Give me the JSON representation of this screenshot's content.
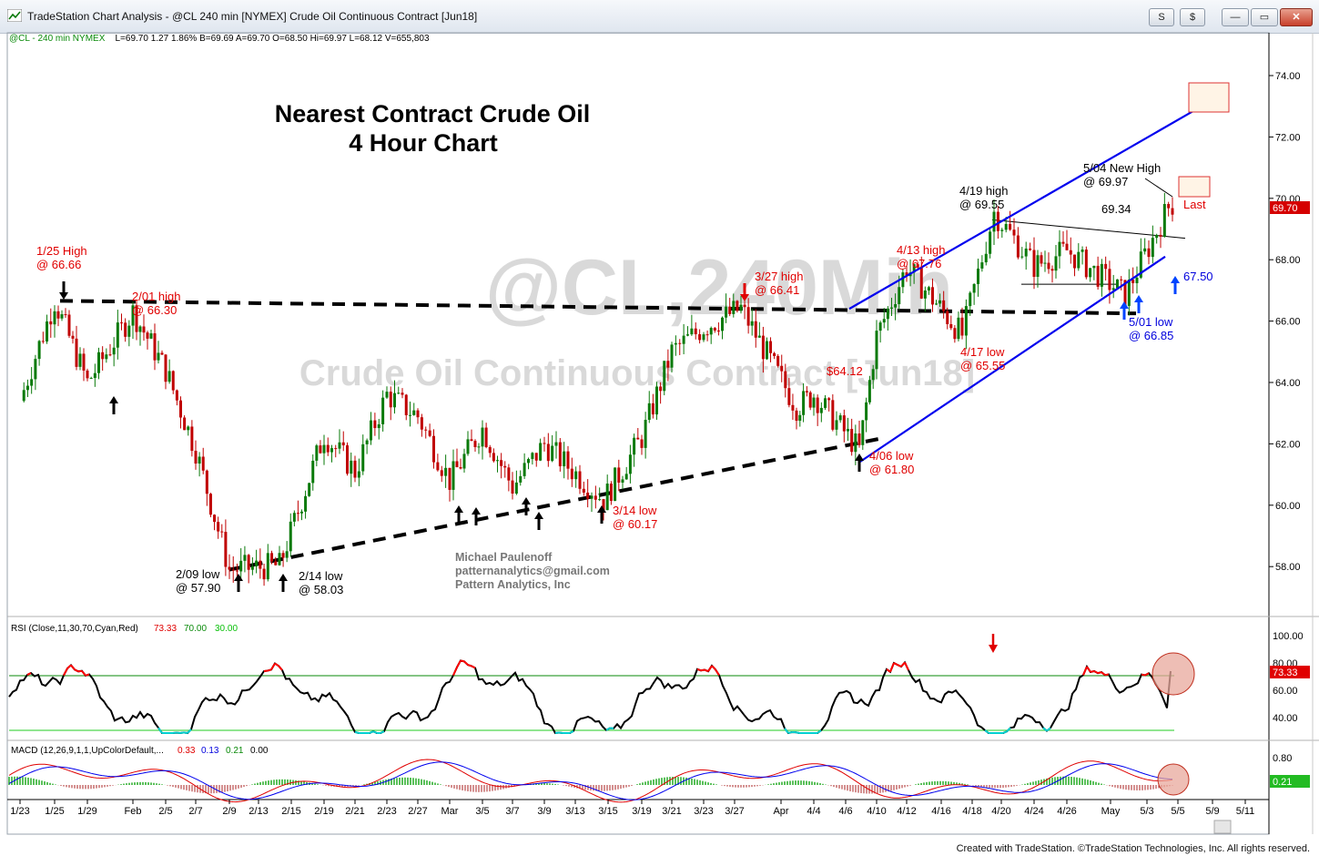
{
  "window": {
    "title": "TradeStation Chart Analysis - @CL 240 min [NYMEX] Crude Oil Continuous Contract [Jun18]",
    "buttons": [
      "S",
      "$",
      "—",
      "▭",
      "✕"
    ]
  },
  "status_line": {
    "symbol": "@CL - 240 min  NYMEX",
    "values": "L=69.70  1.27  1.86%  B=69.69  A=69.70  O=68.50  Hi=69.97  L=68.12  V=655,803"
  },
  "watermark": {
    "line1": "@CL,240Min",
    "line2": "Crude Oil Continuous Contract [Jun18]"
  },
  "chart_title": {
    "line1": "Nearest Contract Crude Oil",
    "line2": "4 Hour Chart"
  },
  "author": {
    "name": "Michael Paulenoff",
    "email": "patternanalytics@gmail.com",
    "company": "Pattern Analytics, Inc"
  },
  "colors": {
    "up": "#0a7a0a",
    "down": "#c00000",
    "channel": "#0000ee",
    "annot_red": "#e00000",
    "annot_blue": "#0000dd",
    "rsi": "#000000",
    "rsi_hot": "#ff0000",
    "rsi_cold": "#00d0d0"
  },
  "annotations": [
    {
      "id": "jan25",
      "lines": [
        "1/25 High",
        "@ 66.66"
      ],
      "color": "red"
    },
    {
      "id": "feb01",
      "lines": [
        "2/01 high",
        "@ 66.30"
      ],
      "color": "red"
    },
    {
      "id": "mar27",
      "lines": [
        "3/27 high",
        "@ 66.41"
      ],
      "color": "red"
    },
    {
      "id": "p6412",
      "lines": [
        "$64.12"
      ],
      "color": "red"
    },
    {
      "id": "apr13",
      "lines": [
        "4/13 high",
        "@ 67.76"
      ],
      "color": "red"
    },
    {
      "id": "apr19",
      "lines": [
        "4/19 high",
        "@ 69.55"
      ],
      "color": "black"
    },
    {
      "id": "may04",
      "lines": [
        "5/04 New High",
        "@ 69.97"
      ],
      "color": "black"
    },
    {
      "id": "p6934",
      "lines": [
        "69.34"
      ],
      "color": "black"
    },
    {
      "id": "last",
      "lines": [
        "Last"
      ],
      "color": "red"
    },
    {
      "id": "p6750",
      "lines": [
        "67.50"
      ],
      "color": "blue"
    },
    {
      "id": "may01",
      "lines": [
        "5/01 low",
        "@ 66.85"
      ],
      "color": "blue"
    },
    {
      "id": "apr17",
      "lines": [
        "4/17 low",
        "@ 65.55"
      ],
      "color": "red"
    },
    {
      "id": "apr06",
      "lines": [
        "4/06 low",
        "@ 61.80"
      ],
      "color": "red"
    },
    {
      "id": "mar14",
      "lines": [
        "3/14 low",
        "@ 60.17"
      ],
      "color": "red"
    },
    {
      "id": "feb09",
      "lines": [
        "2/09 low",
        "@ 57.90"
      ],
      "color": "black"
    },
    {
      "id": "feb14",
      "lines": [
        "2/14 low",
        "@ 58.03"
      ],
      "color": "black"
    }
  ],
  "last_price_tag": "69.70",
  "rsi_panel": {
    "label": "RSI (Close,11,30,70,Cyan,Red)",
    "v1": "73.33",
    "v2": "70.00",
    "v3": "30.00",
    "tag": "73.33"
  },
  "macd_panel": {
    "label": "MACD (12,26,9,1,1,UpColorDefault,...",
    "v1": "0.33",
    "v2": "0.13",
    "v3": "0.21",
    "v4": "0.00",
    "tag": "0.21"
  },
  "footer": "Created with TradeStation. ©TradeStation Technologies, Inc. All rights reserved.",
  "chart_data": [
    {
      "type": "candlestick",
      "title": "Nearest Contract Crude Oil 4 Hour Chart",
      "ylim": [
        56,
        75
      ],
      "y_ticks": [
        "74.00",
        "72.00",
        "70.00",
        "68.00",
        "66.00",
        "64.00",
        "62.00",
        "60.00",
        "58.00"
      ],
      "x_ticks": [
        "1/23",
        "1/25",
        "1/29",
        "Feb",
        "2/5",
        "2/7",
        "2/9",
        "2/13",
        "2/15",
        "2/19",
        "2/21",
        "2/23",
        "2/27",
        "Mar",
        "3/5",
        "3/7",
        "3/9",
        "3/13",
        "3/15",
        "3/19",
        "3/21",
        "3/23",
        "3/27",
        "Apr",
        "4/4",
        "4/6",
        "4/10",
        "4/12",
        "4/16",
        "4/18",
        "4/20",
        "4/24",
        "4/26",
        "May",
        "5/3",
        "5/5",
        "5/9",
        "5/11"
      ],
      "key_points": [
        {
          "date": "1/23",
          "close": 63.4
        },
        {
          "date": "1/25",
          "close": 66.66
        },
        {
          "date": "1/29",
          "close": 64.0
        },
        {
          "date": "2/01",
          "close": 66.3
        },
        {
          "date": "2/05",
          "close": 64.4
        },
        {
          "date": "2/07",
          "close": 61.8
        },
        {
          "date": "2/09",
          "close": 57.9
        },
        {
          "date": "2/14",
          "close": 58.03
        },
        {
          "date": "2/19",
          "close": 62.3
        },
        {
          "date": "2/21",
          "close": 61.1
        },
        {
          "date": "2/23",
          "close": 63.6
        },
        {
          "date": "2/27",
          "close": 62.9
        },
        {
          "date": "3/01",
          "close": 60.8
        },
        {
          "date": "3/05",
          "close": 62.5
        },
        {
          "date": "3/07",
          "close": 60.6
        },
        {
          "date": "3/09",
          "close": 62.0
        },
        {
          "date": "3/14",
          "close": 60.17
        },
        {
          "date": "3/19",
          "close": 62.2
        },
        {
          "date": "3/21",
          "close": 65.0
        },
        {
          "date": "3/23",
          "close": 65.8
        },
        {
          "date": "3/27",
          "close": 66.41
        },
        {
          "date": "4/02",
          "close": 63.2
        },
        {
          "date": "4/04",
          "close": 63.6
        },
        {
          "date": "4/06",
          "close": 61.8
        },
        {
          "date": "4/10",
          "close": 65.5
        },
        {
          "date": "4/13",
          "close": 67.76
        },
        {
          "date": "4/17",
          "close": 65.55
        },
        {
          "date": "4/19",
          "close": 69.55
        },
        {
          "date": "4/24",
          "close": 67.8
        },
        {
          "date": "4/26",
          "close": 68.3
        },
        {
          "date": "5/01",
          "close": 66.85
        },
        {
          "date": "5/04",
          "close": 69.97
        },
        {
          "date": "5/04",
          "close": 69.7
        }
      ],
      "reference_lines": [
        {
          "name": "resistance (dashed)",
          "from": {
            "date": "1/25",
            "y": 66.66
          },
          "to": {
            "date": "5/01",
            "y": 66.25
          }
        },
        {
          "name": "support (dashed)",
          "from": {
            "date": "2/09",
            "y": 57.9
          },
          "to": {
            "date": "4/08",
            "y": 62.2
          }
        },
        {
          "name": "channel upper",
          "from": {
            "date": "4/09",
            "y": 66.4
          },
          "to": {
            "date": "5/08",
            "y": 73.0
          }
        },
        {
          "name": "channel lower",
          "from": {
            "date": "4/06",
            "y": 61.4
          },
          "to": {
            "date": "5/06",
            "y": 68.1
          }
        }
      ]
    },
    {
      "type": "line",
      "title": "RSI (Close,11,30,70,Cyan,Red)",
      "ylim": [
        20,
        105
      ],
      "y_ticks": [
        "100.00",
        "80.00",
        "60.00",
        "40.00"
      ],
      "levels": [
        70,
        30
      ],
      "last": 73.33
    },
    {
      "type": "line",
      "title": "MACD (12,26,9,1,1,UpColorDefault,...",
      "y_ticks": [
        "0.80"
      ],
      "values": {
        "macd": 0.33,
        "signal": 0.13,
        "hist": 0.21,
        "zero": 0.0
      }
    }
  ]
}
